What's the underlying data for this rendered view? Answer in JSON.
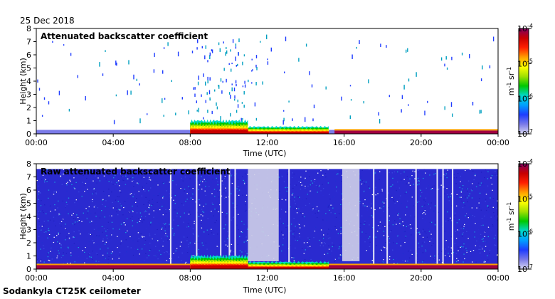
{
  "date": "25 Dec 2018",
  "footer": "Sodankyla CT25K ceilometer",
  "colors": {
    "colormap": [
      "#d8d8f2",
      "#7a7ae8",
      "#1e3cff",
      "#00a0ff",
      "#00d8c8",
      "#00c800",
      "#a0e000",
      "#ffff00",
      "#ffa000",
      "#ff2000",
      "#c80000",
      "#800060"
    ],
    "raw_noise": [
      "#2b2bd6",
      "#1f1fc0",
      "#3a48e0",
      "#ffffff",
      "#2030d0",
      "#1aa0e0"
    ]
  },
  "chart_data": [
    {
      "type": "heatmap",
      "title": "Attenuated backscatter coefficient",
      "xlabel": "Time (UTC)",
      "ylabel": "Height (km)",
      "x_ticks": [
        "00:00",
        "04:00",
        "08:00",
        "12:00",
        "16:00",
        "20:00",
        "00:00"
      ],
      "y_ticks": [
        "0",
        "1",
        "2",
        "3",
        "4",
        "5",
        "6",
        "7",
        "8"
      ],
      "xlim": [
        0,
        24
      ],
      "ylim": [
        0,
        8
      ],
      "colorbar": {
        "scale": "log",
        "range": [
          1e-07,
          0.0001
        ],
        "tick_base": "10",
        "tick_exponents": [
          "-7",
          "-6",
          "-5",
          "-4"
        ],
        "unit_m": "m",
        "unit_m_exp": "-1",
        "unit_sr": "sr",
        "unit_sr_exp": "-1"
      },
      "features": [
        {
          "kind": "boundary-layer",
          "x_range": [
            0,
            24
          ],
          "top_km": 0.3
        },
        {
          "kind": "low-cloud",
          "x_range": [
            8.0,
            11.0
          ],
          "height_km": [
            0.2,
            1.1
          ]
        },
        {
          "kind": "low-cloud",
          "x_range": [
            11.0,
            15.2
          ],
          "height_km": [
            0.1,
            0.6
          ]
        },
        {
          "kind": "surface-layer",
          "x_range": [
            15.5,
            24
          ],
          "height_km": [
            0.0,
            0.25
          ]
        },
        {
          "kind": "precipitation-streaks",
          "x_range": [
            8.0,
            11.5
          ],
          "height_km": [
            1.0,
            7.3
          ]
        }
      ]
    },
    {
      "type": "heatmap",
      "title": "Raw attenuated backscatter coefficient",
      "xlabel": "Time (UTC)",
      "ylabel": "Height (km)",
      "x_ticks": [
        "00:00",
        "04:00",
        "08:00",
        "12:00",
        "16:00",
        "20:00",
        "00:00"
      ],
      "y_ticks": [
        "0",
        "1",
        "2",
        "3",
        "4",
        "5",
        "6",
        "7",
        "8"
      ],
      "xlim": [
        0,
        24
      ],
      "ylim": [
        0,
        8
      ],
      "colorbar": {
        "scale": "log",
        "range": [
          1e-07,
          0.0001
        ],
        "tick_base": "10",
        "tick_exponents": [
          "-7",
          "-6",
          "-5",
          "-4"
        ],
        "unit_m": "m",
        "unit_m_exp": "-1",
        "unit_sr": "sr",
        "unit_sr_exp": "-1"
      },
      "features": [
        {
          "kind": "noise-background",
          "x_range": [
            0,
            24
          ],
          "height_km": [
            0,
            7.6
          ]
        },
        {
          "kind": "low-cloud",
          "x_range": [
            8.0,
            11.0
          ],
          "height_km": [
            0.2,
            1.1
          ]
        },
        {
          "kind": "low-cloud",
          "x_range": [
            11.0,
            15.2
          ],
          "height_km": [
            0.1,
            0.6
          ]
        },
        {
          "kind": "surface-layer",
          "x_range": [
            0,
            24
          ],
          "height_km": [
            0.0,
            0.3
          ]
        },
        {
          "kind": "clear-gap",
          "x_range": [
            11.0,
            12.6
          ],
          "height_km": [
            0.6,
            7.6
          ]
        },
        {
          "kind": "clear-gap",
          "x_range": [
            15.9,
            16.8
          ],
          "height_km": [
            0.6,
            7.6
          ]
        }
      ]
    }
  ]
}
